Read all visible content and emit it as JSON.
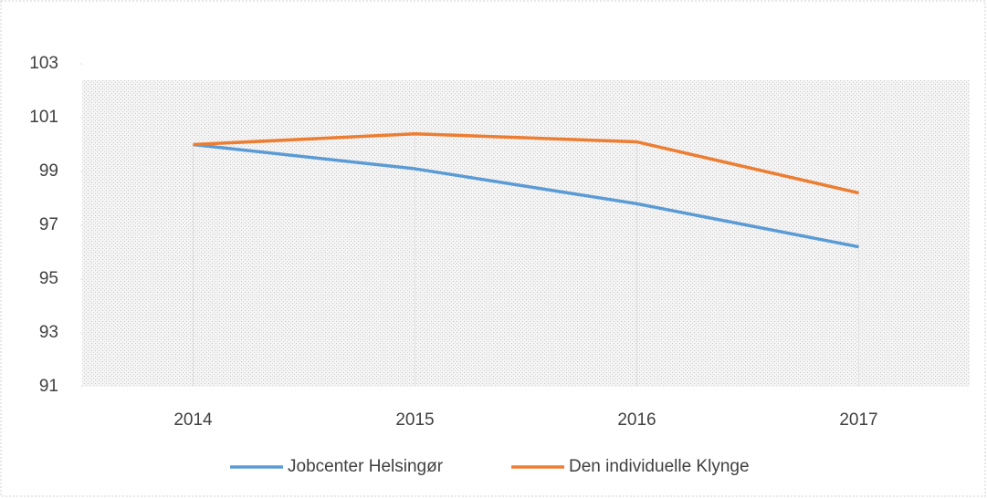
{
  "chart_data": {
    "type": "line",
    "categories": [
      "2014",
      "2015",
      "2016",
      "2017"
    ],
    "series": [
      {
        "name": "Jobcenter Helsingør",
        "color": "#5b9bd5",
        "values": [
          100,
          99.1,
          97.8,
          96.2
        ]
      },
      {
        "name": "Den individuelle Klynge",
        "color": "#ed7d31",
        "values": [
          100,
          100.4,
          100.1,
          98.2
        ]
      }
    ],
    "ylim": [
      91,
      103
    ],
    "yticks": [
      91,
      93,
      95,
      97,
      99,
      101,
      103
    ],
    "legend": "bottom"
  }
}
